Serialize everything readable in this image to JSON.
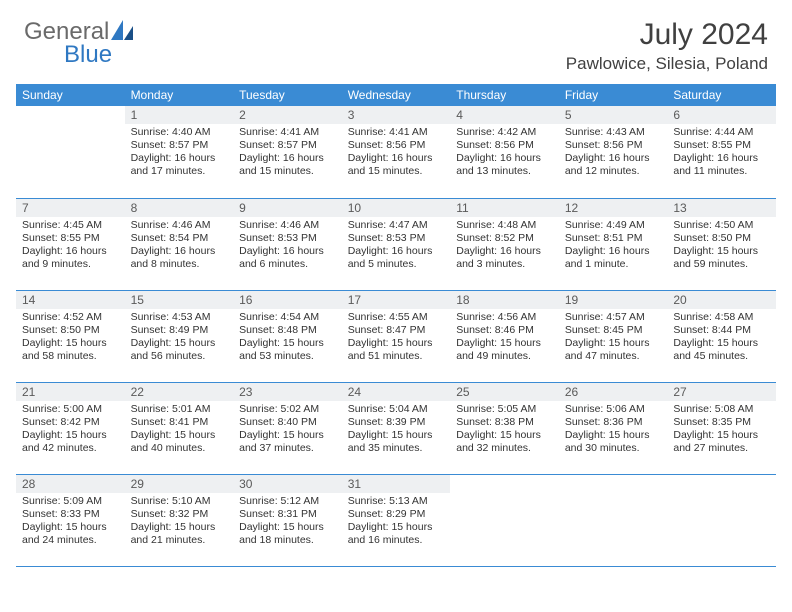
{
  "brand": {
    "general": "General",
    "blue": "Blue"
  },
  "title": "July 2024",
  "location": "Pawlowice, Silesia, Poland",
  "colors": {
    "header_bg": "#3a8bd4",
    "header_text": "#ffffff",
    "daynum_bg": "#eef0f2",
    "row_border": "#3a8bd4",
    "logo_gray": "#6a6a6a",
    "logo_blue": "#2f78c2"
  },
  "day_headers": [
    "Sunday",
    "Monday",
    "Tuesday",
    "Wednesday",
    "Thursday",
    "Friday",
    "Saturday"
  ],
  "weeks": [
    [
      {
        "n": "",
        "sr": "",
        "ss": "",
        "dl": ""
      },
      {
        "n": "1",
        "sr": "Sunrise: 4:40 AM",
        "ss": "Sunset: 8:57 PM",
        "dl": "Daylight: 16 hours and 17 minutes."
      },
      {
        "n": "2",
        "sr": "Sunrise: 4:41 AM",
        "ss": "Sunset: 8:57 PM",
        "dl": "Daylight: 16 hours and 15 minutes."
      },
      {
        "n": "3",
        "sr": "Sunrise: 4:41 AM",
        "ss": "Sunset: 8:56 PM",
        "dl": "Daylight: 16 hours and 15 minutes."
      },
      {
        "n": "4",
        "sr": "Sunrise: 4:42 AM",
        "ss": "Sunset: 8:56 PM",
        "dl": "Daylight: 16 hours and 13 minutes."
      },
      {
        "n": "5",
        "sr": "Sunrise: 4:43 AM",
        "ss": "Sunset: 8:56 PM",
        "dl": "Daylight: 16 hours and 12 minutes."
      },
      {
        "n": "6",
        "sr": "Sunrise: 4:44 AM",
        "ss": "Sunset: 8:55 PM",
        "dl": "Daylight: 16 hours and 11 minutes."
      }
    ],
    [
      {
        "n": "7",
        "sr": "Sunrise: 4:45 AM",
        "ss": "Sunset: 8:55 PM",
        "dl": "Daylight: 16 hours and 9 minutes."
      },
      {
        "n": "8",
        "sr": "Sunrise: 4:46 AM",
        "ss": "Sunset: 8:54 PM",
        "dl": "Daylight: 16 hours and 8 minutes."
      },
      {
        "n": "9",
        "sr": "Sunrise: 4:46 AM",
        "ss": "Sunset: 8:53 PM",
        "dl": "Daylight: 16 hours and 6 minutes."
      },
      {
        "n": "10",
        "sr": "Sunrise: 4:47 AM",
        "ss": "Sunset: 8:53 PM",
        "dl": "Daylight: 16 hours and 5 minutes."
      },
      {
        "n": "11",
        "sr": "Sunrise: 4:48 AM",
        "ss": "Sunset: 8:52 PM",
        "dl": "Daylight: 16 hours and 3 minutes."
      },
      {
        "n": "12",
        "sr": "Sunrise: 4:49 AM",
        "ss": "Sunset: 8:51 PM",
        "dl": "Daylight: 16 hours and 1 minute."
      },
      {
        "n": "13",
        "sr": "Sunrise: 4:50 AM",
        "ss": "Sunset: 8:50 PM",
        "dl": "Daylight: 15 hours and 59 minutes."
      }
    ],
    [
      {
        "n": "14",
        "sr": "Sunrise: 4:52 AM",
        "ss": "Sunset: 8:50 PM",
        "dl": "Daylight: 15 hours and 58 minutes."
      },
      {
        "n": "15",
        "sr": "Sunrise: 4:53 AM",
        "ss": "Sunset: 8:49 PM",
        "dl": "Daylight: 15 hours and 56 minutes."
      },
      {
        "n": "16",
        "sr": "Sunrise: 4:54 AM",
        "ss": "Sunset: 8:48 PM",
        "dl": "Daylight: 15 hours and 53 minutes."
      },
      {
        "n": "17",
        "sr": "Sunrise: 4:55 AM",
        "ss": "Sunset: 8:47 PM",
        "dl": "Daylight: 15 hours and 51 minutes."
      },
      {
        "n": "18",
        "sr": "Sunrise: 4:56 AM",
        "ss": "Sunset: 8:46 PM",
        "dl": "Daylight: 15 hours and 49 minutes."
      },
      {
        "n": "19",
        "sr": "Sunrise: 4:57 AM",
        "ss": "Sunset: 8:45 PM",
        "dl": "Daylight: 15 hours and 47 minutes."
      },
      {
        "n": "20",
        "sr": "Sunrise: 4:58 AM",
        "ss": "Sunset: 8:44 PM",
        "dl": "Daylight: 15 hours and 45 minutes."
      }
    ],
    [
      {
        "n": "21",
        "sr": "Sunrise: 5:00 AM",
        "ss": "Sunset: 8:42 PM",
        "dl": "Daylight: 15 hours and 42 minutes."
      },
      {
        "n": "22",
        "sr": "Sunrise: 5:01 AM",
        "ss": "Sunset: 8:41 PM",
        "dl": "Daylight: 15 hours and 40 minutes."
      },
      {
        "n": "23",
        "sr": "Sunrise: 5:02 AM",
        "ss": "Sunset: 8:40 PM",
        "dl": "Daylight: 15 hours and 37 minutes."
      },
      {
        "n": "24",
        "sr": "Sunrise: 5:04 AM",
        "ss": "Sunset: 8:39 PM",
        "dl": "Daylight: 15 hours and 35 minutes."
      },
      {
        "n": "25",
        "sr": "Sunrise: 5:05 AM",
        "ss": "Sunset: 8:38 PM",
        "dl": "Daylight: 15 hours and 32 minutes."
      },
      {
        "n": "26",
        "sr": "Sunrise: 5:06 AM",
        "ss": "Sunset: 8:36 PM",
        "dl": "Daylight: 15 hours and 30 minutes."
      },
      {
        "n": "27",
        "sr": "Sunrise: 5:08 AM",
        "ss": "Sunset: 8:35 PM",
        "dl": "Daylight: 15 hours and 27 minutes."
      }
    ],
    [
      {
        "n": "28",
        "sr": "Sunrise: 5:09 AM",
        "ss": "Sunset: 8:33 PM",
        "dl": "Daylight: 15 hours and 24 minutes."
      },
      {
        "n": "29",
        "sr": "Sunrise: 5:10 AM",
        "ss": "Sunset: 8:32 PM",
        "dl": "Daylight: 15 hours and 21 minutes."
      },
      {
        "n": "30",
        "sr": "Sunrise: 5:12 AM",
        "ss": "Sunset: 8:31 PM",
        "dl": "Daylight: 15 hours and 18 minutes."
      },
      {
        "n": "31",
        "sr": "Sunrise: 5:13 AM",
        "ss": "Sunset: 8:29 PM",
        "dl": "Daylight: 15 hours and 16 minutes."
      },
      {
        "n": "",
        "sr": "",
        "ss": "",
        "dl": ""
      },
      {
        "n": "",
        "sr": "",
        "ss": "",
        "dl": ""
      },
      {
        "n": "",
        "sr": "",
        "ss": "",
        "dl": ""
      }
    ]
  ]
}
